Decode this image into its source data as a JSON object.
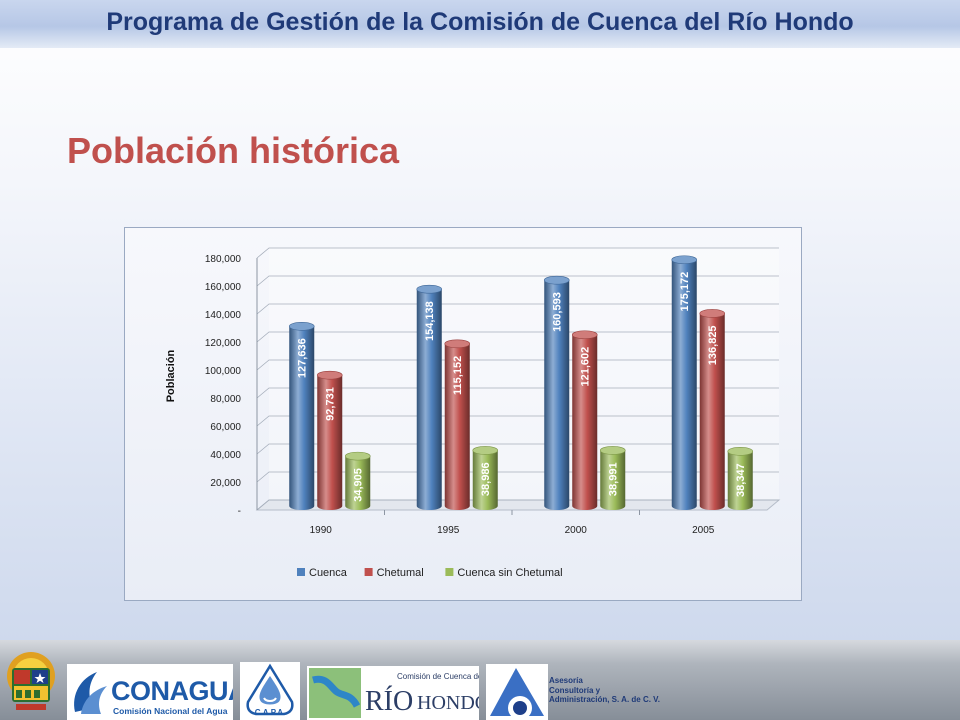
{
  "header": {
    "title": "Programa de Gestión de la Comisión de Cuenca del Río Hondo"
  },
  "section_title": "Población histórica",
  "chart_data": {
    "type": "bar",
    "style": "3d-cylinder",
    "categories": [
      "1990",
      "1995",
      "2000",
      "2005"
    ],
    "series": [
      {
        "name": "Cuenca",
        "color": "#4f81bd",
        "values": [
          127636,
          154138,
          160593,
          175172
        ],
        "labels": [
          "127,636",
          "154,138",
          "160,593",
          "175,172"
        ]
      },
      {
        "name": "Chetumal",
        "color": "#c0504d",
        "values": [
          92731,
          115152,
          121602,
          136825
        ],
        "labels": [
          "92,731",
          "115,152",
          "121,602",
          "136,825"
        ]
      },
      {
        "name": "Cuenca sin Chetumal",
        "color": "#9bbb59",
        "values": [
          34905,
          38986,
          38991,
          38347
        ],
        "labels": [
          "34,905",
          "38,986",
          "38,991",
          "38,347"
        ]
      }
    ],
    "ylabel": "Población",
    "ylim": [
      0,
      180000
    ],
    "yticks": [
      0,
      20000,
      40000,
      60000,
      80000,
      100000,
      120000,
      140000,
      160000,
      180000
    ],
    "ytick_labels": [
      "-",
      "20,000",
      "40,000",
      "60,000",
      "80,000",
      "100,000",
      "120,000",
      "140,000",
      "160,000",
      "180,000"
    ],
    "legend_position": "bottom",
    "grid": true
  },
  "footer": {
    "logos": {
      "conagua_name": "CONAGUA",
      "conagua_subtitle": "Comisión Nacional del Agua",
      "capa_name": "C.A.P.A.",
      "comision_text": "Comisión de Cuenca del",
      "rio_text": "RÍO",
      "hondo_text": "HONDO"
    },
    "asesoria_lines": [
      "Asesoría",
      "Consultoría y",
      "Administración, S. A. de C. V."
    ],
    "colors": {
      "conagua_blue": "#1e5aa8",
      "river_green": "#6aa84f",
      "capa_blue": "#1e5aa8"
    }
  }
}
